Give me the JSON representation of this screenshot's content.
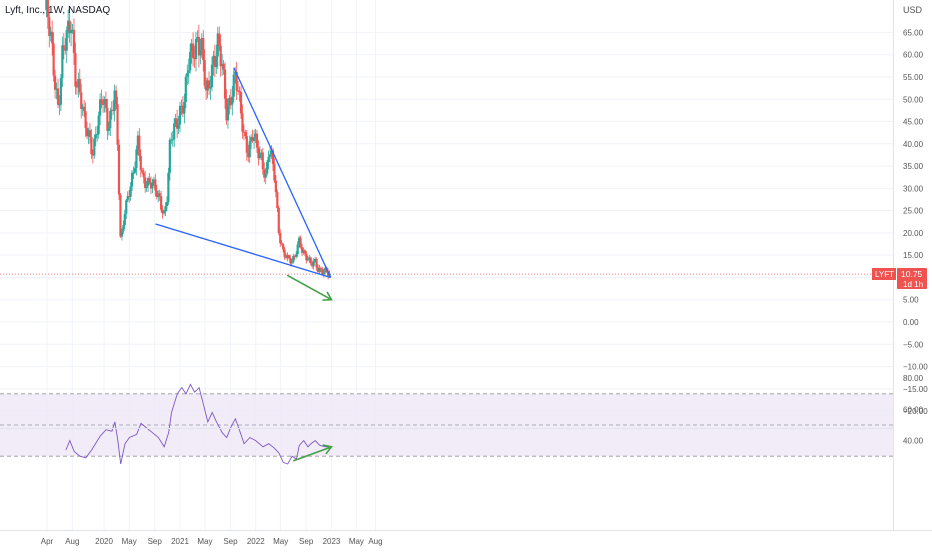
{
  "header": {
    "title": "Lyft, Inc., 1W, NASDAQ"
  },
  "price_axis": {
    "currency": "USD"
  },
  "price_tag": {
    "symbol": "LYFT",
    "last_price": "10.75",
    "countdown": "1d 1h"
  },
  "colors": {
    "up": "#26a69a",
    "down": "#ef5350",
    "trendline": "#2962ff",
    "arrow": "#43a047",
    "rsi_line": "#7e57c2",
    "rsi_band": "#ede7f6"
  },
  "chart_data": [
    {
      "type": "candlestick",
      "title": "Lyft, Inc., 1W, NASDAQ",
      "ylabel": "USD",
      "ylim": [
        -25,
        70
      ],
      "yticks": [
        65,
        60,
        55,
        50,
        45,
        40,
        35,
        30,
        25,
        20,
        15,
        10,
        5,
        0,
        -5,
        -10,
        -15,
        -20
      ],
      "ytick_labels": [
        "65.00",
        "60.00",
        "55.00",
        "50.00",
        "45.00",
        "40.00",
        "35.00",
        "30.00",
        "25.00",
        "20.00",
        "15.00",
        "10.00",
        "5.00",
        "0.00",
        "−5.00",
        "−10.00",
        "−15.00",
        "−20.00"
      ],
      "x_tick_labels": [
        "Apr",
        "Aug",
        "2020",
        "May",
        "Sep",
        "2021",
        "May",
        "Sep",
        "2022",
        "May",
        "Sep",
        "2023",
        "May",
        "Aug"
      ],
      "x_tick_positions": [
        "2019-04",
        "2019-08",
        "2020-01",
        "2020-05",
        "2020-09",
        "2021-01",
        "2021-05",
        "2021-09",
        "2022-01",
        "2022-05",
        "2022-09",
        "2023-01",
        "2023-05",
        "2023-08"
      ],
      "last_close": 10.75,
      "series_path": [
        [
          "2019-03-29",
          70
        ],
        [
          "2019-04-20",
          62
        ],
        [
          "2019-05-11",
          54
        ],
        [
          "2019-05-25",
          49
        ],
        [
          "2019-06-15",
          60
        ],
        [
          "2019-07-13",
          64
        ],
        [
          "2019-07-27",
          68
        ],
        [
          "2019-08-17",
          56
        ],
        [
          "2019-09-07",
          51
        ],
        [
          "2019-09-28",
          44
        ],
        [
          "2019-10-19",
          42
        ],
        [
          "2019-11-09",
          39
        ],
        [
          "2019-11-30",
          44
        ],
        [
          "2019-12-28",
          50
        ],
        [
          "2020-01-18",
          45
        ],
        [
          "2020-02-08",
          48
        ],
        [
          "2020-02-22",
          52
        ],
        [
          "2020-03-07",
          38
        ],
        [
          "2020-03-21",
          17
        ],
        [
          "2020-04-11",
          26
        ],
        [
          "2020-05-02",
          30
        ],
        [
          "2020-05-23",
          33
        ],
        [
          "2020-06-13",
          40
        ],
        [
          "2020-07-04",
          33
        ],
        [
          "2020-08-01",
          31
        ],
        [
          "2020-08-29",
          30
        ],
        [
          "2020-09-26",
          28
        ],
        [
          "2020-10-17",
          24
        ],
        [
          "2020-10-31",
          28
        ],
        [
          "2020-11-14",
          39
        ],
        [
          "2020-12-05",
          44
        ],
        [
          "2021-01-02",
          48
        ],
        [
          "2021-01-23",
          49
        ],
        [
          "2021-02-13",
          58
        ],
        [
          "2021-03-06",
          62
        ],
        [
          "2021-03-27",
          64
        ],
        [
          "2021-04-17",
          60
        ],
        [
          "2021-05-08",
          50
        ],
        [
          "2021-05-22",
          54
        ],
        [
          "2021-06-12",
          60
        ],
        [
          "2021-07-03",
          62
        ],
        [
          "2021-07-24",
          56
        ],
        [
          "2021-08-14",
          47
        ],
        [
          "2021-09-04",
          52
        ],
        [
          "2021-09-25",
          55
        ],
        [
          "2021-10-16",
          48
        ],
        [
          "2021-11-06",
          42
        ],
        [
          "2021-11-27",
          39
        ],
        [
          "2021-12-18",
          42
        ],
        [
          "2022-01-08",
          38
        ],
        [
          "2022-01-29",
          37
        ],
        [
          "2022-02-19",
          33
        ],
        [
          "2022-03-05",
          39
        ],
        [
          "2022-03-19",
          36
        ],
        [
          "2022-04-02",
          32
        ],
        [
          "2022-04-23",
          20
        ],
        [
          "2022-05-14",
          16
        ],
        [
          "2022-06-04",
          14
        ],
        [
          "2022-06-25",
          13
        ],
        [
          "2022-07-09",
          15
        ],
        [
          "2022-07-30",
          19
        ],
        [
          "2022-08-13",
          16
        ],
        [
          "2022-09-03",
          14
        ],
        [
          "2022-09-24",
          13
        ],
        [
          "2022-10-15",
          14
        ],
        [
          "2022-10-29",
          12
        ],
        [
          "2022-11-19",
          11
        ],
        [
          "2022-12-10",
          11
        ],
        [
          "2022-12-24",
          10.75
        ]
      ],
      "trendlines": [
        {
          "kind": "upper-resistance",
          "points": [
            [
              "2021-09-18",
              57
            ],
            [
              "2022-12-28",
              10
            ]
          ]
        },
        {
          "kind": "lower-support",
          "points": [
            [
              "2020-09-05",
              22
            ],
            [
              "2022-12-28",
              10
            ]
          ]
        }
      ],
      "annotation_arrows": [
        {
          "points": [
            [
              "2022-06-01",
              10.5
            ],
            [
              "2023-01-01",
              5
            ]
          ]
        }
      ]
    },
    {
      "type": "line",
      "title": "",
      "ylim": [
        25,
        90
      ],
      "yticks": [
        80,
        60,
        40
      ],
      "ytick_labels": [
        "80.00",
        "60.00",
        "40.00"
      ],
      "bands": [
        30,
        50,
        70
      ],
      "series_path": [
        [
          "2019-07-01",
          34
        ],
        [
          "2019-07-20",
          40
        ],
        [
          "2019-08-10",
          33
        ],
        [
          "2019-09-07",
          30
        ],
        [
          "2019-10-05",
          29
        ],
        [
          "2019-11-02",
          34
        ],
        [
          "2019-12-14",
          43
        ],
        [
          "2020-01-11",
          47
        ],
        [
          "2020-02-08",
          46
        ],
        [
          "2020-02-22",
          52
        ],
        [
          "2020-03-07",
          40
        ],
        [
          "2020-03-21",
          25
        ],
        [
          "2020-04-11",
          38
        ],
        [
          "2020-05-02",
          42
        ],
        [
          "2020-06-06",
          44
        ],
        [
          "2020-06-27",
          51
        ],
        [
          "2020-07-25",
          48
        ],
        [
          "2020-08-22",
          45
        ],
        [
          "2020-09-19",
          42
        ],
        [
          "2020-10-17",
          36
        ],
        [
          "2020-11-07",
          45
        ],
        [
          "2020-11-21",
          58
        ],
        [
          "2020-12-19",
          70
        ],
        [
          "2021-01-09",
          74
        ],
        [
          "2021-01-30",
          70
        ],
        [
          "2021-02-20",
          76
        ],
        [
          "2021-03-13",
          71
        ],
        [
          "2021-04-03",
          74
        ],
        [
          "2021-04-24",
          63
        ],
        [
          "2021-05-15",
          52
        ],
        [
          "2021-06-05",
          58
        ],
        [
          "2021-06-26",
          52
        ],
        [
          "2021-07-24",
          45
        ],
        [
          "2021-08-14",
          42
        ],
        [
          "2021-09-04",
          49
        ],
        [
          "2021-09-25",
          54
        ],
        [
          "2021-10-16",
          46
        ],
        [
          "2021-11-06",
          38
        ],
        [
          "2021-12-04",
          42
        ],
        [
          "2022-01-01",
          40
        ],
        [
          "2022-02-05",
          36
        ],
        [
          "2022-03-05",
          38
        ],
        [
          "2022-04-02",
          35
        ],
        [
          "2022-04-23",
          32
        ],
        [
          "2022-05-14",
          26
        ],
        [
          "2022-06-04",
          25
        ],
        [
          "2022-06-25",
          30
        ],
        [
          "2022-07-16",
          28
        ],
        [
          "2022-07-30",
          37
        ],
        [
          "2022-08-20",
          40
        ],
        [
          "2022-09-10",
          36
        ],
        [
          "2022-09-24",
          38
        ],
        [
          "2022-10-15",
          40
        ],
        [
          "2022-11-05",
          37
        ],
        [
          "2022-12-03",
          36
        ],
        [
          "2022-12-24",
          36
        ]
      ],
      "annotation_arrows": [
        {
          "points": [
            [
              "2022-07-01",
              27
            ],
            [
              "2023-01-01",
              36
            ]
          ]
        }
      ]
    }
  ]
}
